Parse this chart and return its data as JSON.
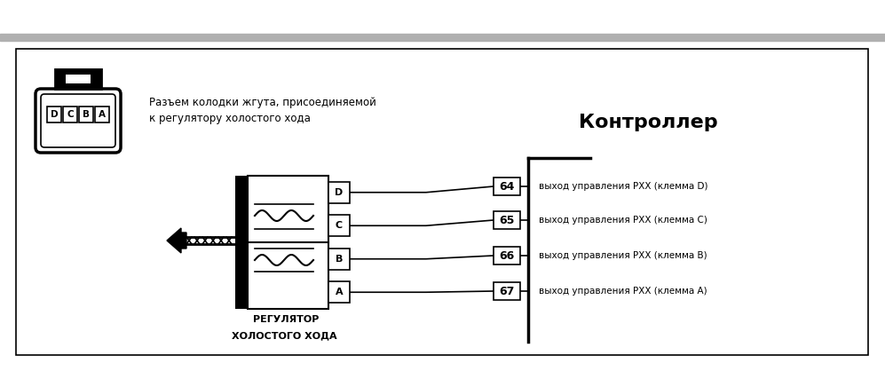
{
  "bg_color": "#ffffff",
  "title_text": "Контроллер",
  "connector_label_line1": "Разъем колодки жгута, присоединяемой",
  "connector_label_line2": "к регулятору холостого хода",
  "bottom_label_line1": "РЕГУЛЯТОР",
  "bottom_label_line2": "ХОЛОСТОГО ХОДА",
  "pin_letters": [
    "D",
    "C",
    "B",
    "A"
  ],
  "pin_numbers": [
    64,
    65,
    66,
    67
  ],
  "pin_descriptions": [
    "выход управления РХХ (клемма D)",
    "выход управления РХХ (клемма С)",
    "выход управления РХХ (клемма В)",
    "выход управления РХХ (клемма А)"
  ]
}
